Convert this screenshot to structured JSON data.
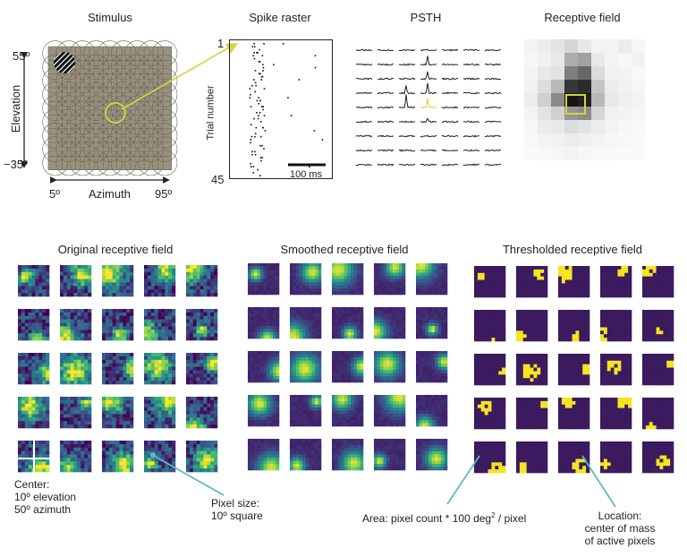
{
  "top_panels": {
    "stimulus": {
      "title": "Stimulus",
      "elev_top": "55º",
      "elev_bottom": "−35º",
      "elev_label": "Elevation",
      "az_left": "5º",
      "az_right": "95º",
      "az_label": "Azimuth"
    },
    "raster": {
      "title": "Spike raster",
      "trial_top": "1",
      "trial_bottom": "45",
      "ylabel": "Trial number",
      "scalebar": "100 ms"
    },
    "psth": {
      "title": "PSTH"
    },
    "rf": {
      "title": "Receptive field"
    }
  },
  "bottom_panels": {
    "original": {
      "title": "Original receptive field"
    },
    "smoothed": {
      "title": "Smoothed receptive field"
    },
    "thresholded": {
      "title": "Thresholded receptive field"
    }
  },
  "annotations": {
    "center_line1": "Center:",
    "center_line2": "10º elevation",
    "center_line3": "50º azimuth",
    "pixel_line1": "Pixel size:",
    "pixel_line2": "10º square",
    "area_text": "Area: pixel count * 100 deg",
    "area_sup": "2",
    "area_tail": " / pixel",
    "loc_line1": "Location:",
    "loc_line2": "center of mass",
    "loc_line3": "of active pixels"
  },
  "colors": {
    "highlight": "#d4d43a",
    "callout": "#5bbcbc",
    "viridis_dark": "#3b1a5e",
    "viridis_yellow": "#f5e51f",
    "stimulus_bg": "#9a9280"
  }
}
